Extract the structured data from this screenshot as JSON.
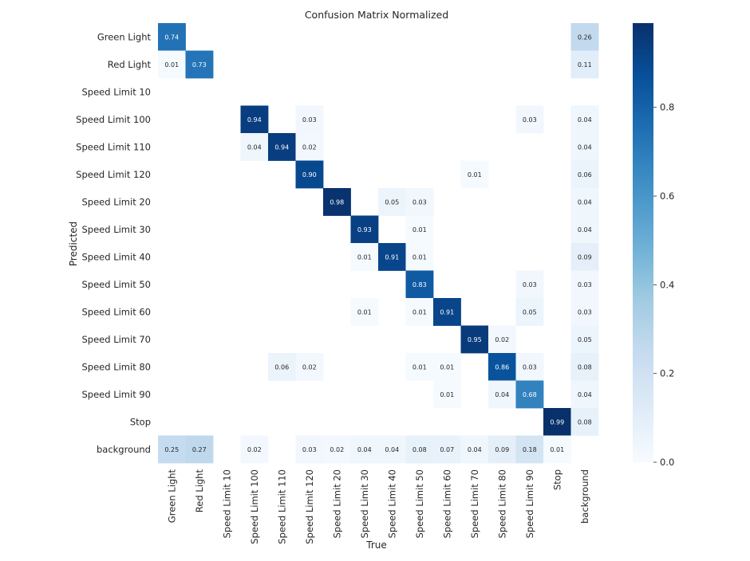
{
  "chart_data": {
    "type": "heatmap",
    "title": "Confusion Matrix Normalized",
    "xlabel": "True",
    "ylabel": "Predicted",
    "rows": [
      "Green Light",
      "Red Light",
      "Speed Limit 10",
      "Speed Limit 100",
      "Speed Limit 110",
      "Speed Limit 120",
      "Speed Limit 20",
      "Speed Limit 30",
      "Speed Limit 40",
      "Speed Limit 50",
      "Speed Limit 60",
      "Speed Limit 70",
      "Speed Limit 80",
      "Speed Limit 90",
      "Stop",
      "background"
    ],
    "columns": [
      "Green Light",
      "Red Light",
      "Speed Limit 10",
      "Speed Limit 100",
      "Speed Limit 110",
      "Speed Limit 120",
      "Speed Limit 20",
      "Speed Limit 30",
      "Speed Limit 40",
      "Speed Limit 50",
      "Speed Limit 60",
      "Speed Limit 70",
      "Speed Limit 80",
      "Speed Limit 90",
      "Stop",
      "background"
    ],
    "values": [
      [
        0.74,
        null,
        null,
        null,
        null,
        null,
        null,
        null,
        null,
        null,
        null,
        null,
        null,
        null,
        null,
        0.26
      ],
      [
        0.01,
        0.73,
        null,
        null,
        null,
        null,
        null,
        null,
        null,
        null,
        null,
        null,
        null,
        null,
        null,
        0.11
      ],
      [
        null,
        null,
        null,
        null,
        null,
        null,
        null,
        null,
        null,
        null,
        null,
        null,
        null,
        null,
        null,
        null
      ],
      [
        null,
        null,
        null,
        0.94,
        null,
        0.03,
        null,
        null,
        null,
        null,
        null,
        null,
        null,
        0.03,
        null,
        0.04
      ],
      [
        null,
        null,
        null,
        0.04,
        0.94,
        0.02,
        null,
        null,
        null,
        null,
        null,
        null,
        null,
        null,
        null,
        0.04
      ],
      [
        null,
        null,
        null,
        null,
        null,
        0.9,
        null,
        null,
        null,
        null,
        null,
        0.01,
        null,
        null,
        null,
        0.06
      ],
      [
        null,
        null,
        null,
        null,
        null,
        null,
        0.98,
        null,
        0.05,
        0.03,
        null,
        null,
        null,
        null,
        null,
        0.04
      ],
      [
        null,
        null,
        null,
        null,
        null,
        null,
        null,
        0.93,
        null,
        0.01,
        null,
        null,
        null,
        null,
        null,
        0.04
      ],
      [
        null,
        null,
        null,
        null,
        null,
        null,
        null,
        0.01,
        0.91,
        0.01,
        null,
        null,
        null,
        null,
        null,
        0.09
      ],
      [
        null,
        null,
        null,
        null,
        null,
        null,
        null,
        null,
        null,
        0.83,
        null,
        null,
        null,
        0.03,
        null,
        0.03
      ],
      [
        null,
        null,
        null,
        null,
        null,
        null,
        null,
        0.01,
        null,
        0.01,
        0.91,
        null,
        null,
        0.05,
        null,
        0.03
      ],
      [
        null,
        null,
        null,
        null,
        null,
        null,
        null,
        null,
        null,
        null,
        null,
        0.95,
        0.02,
        null,
        null,
        0.05
      ],
      [
        null,
        null,
        null,
        null,
        0.06,
        0.02,
        null,
        null,
        null,
        0.01,
        0.01,
        null,
        0.86,
        0.03,
        null,
        0.08
      ],
      [
        null,
        null,
        null,
        null,
        null,
        null,
        null,
        null,
        null,
        null,
        0.01,
        null,
        0.04,
        0.68,
        null,
        0.04
      ],
      [
        null,
        null,
        null,
        null,
        null,
        null,
        null,
        null,
        null,
        null,
        null,
        null,
        null,
        null,
        0.99,
        0.08
      ],
      [
        0.25,
        0.27,
        null,
        0.02,
        null,
        0.03,
        0.02,
        0.04,
        0.04,
        0.08,
        0.07,
        0.04,
        0.09,
        0.18,
        0.01,
        null
      ]
    ],
    "colorbar": {
      "range": [
        0.0,
        0.99
      ],
      "ticks": [
        "0.0",
        "0.2",
        "0.4",
        "0.6",
        "0.8"
      ],
      "colormap": "Blues"
    },
    "grid": false
  }
}
